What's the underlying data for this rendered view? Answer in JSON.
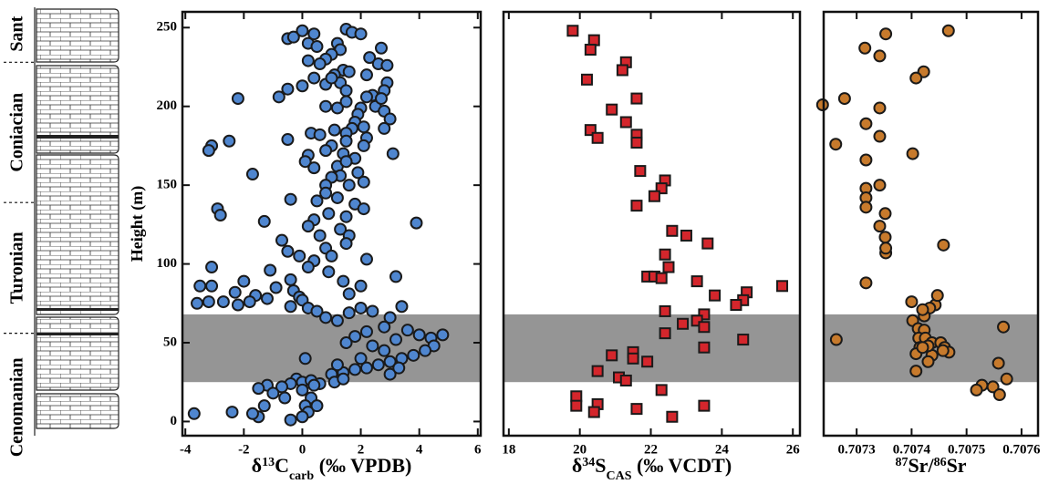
{
  "column": {
    "stages": [
      "Cenomanian",
      "Turonian",
      "Coniacian",
      "Sant"
    ],
    "boundaries": [
      56,
      139,
      228
    ]
  },
  "chart_data": [
    {
      "type": "scatter",
      "x_label": [
        "δ",
        "13",
        "C",
        "carb",
        " (‰ VPDB)"
      ],
      "y_label": "Height (m)",
      "color": "#4f86cf",
      "marker": "circle",
      "xlim": [
        -4.1,
        6.1
      ],
      "ylim": [
        -9,
        260
      ],
      "xticks": [
        -4,
        -2,
        0,
        2,
        4,
        6
      ],
      "yticks": [
        0,
        50,
        100,
        150,
        200,
        250
      ],
      "band": [
        25,
        68
      ],
      "x": [
        -0.5,
        -0.3,
        0,
        0.4,
        0.2,
        0.5,
        1.2,
        1.3,
        1.5,
        1.7,
        2,
        1,
        0.8,
        0.2,
        0.6,
        2.7,
        2.3,
        2.6,
        2.9,
        1.4,
        1.1,
        1.6,
        1.3,
        0.8,
        0.4,
        0,
        -0.5,
        -0.8,
        -2.2,
        1.0,
        1.5,
        2.2,
        2.9,
        2.8,
        2.4,
        2.2,
        2.5,
        2.0,
        1.9,
        1.8,
        1.7,
        2.7,
        2.8,
        3.0,
        2.8,
        2.2,
        2.1,
        3.1,
        2.1,
        1.2,
        1.5,
        0.8,
        -2.5,
        -3.1,
        -3.2,
        -0.5,
        0.3,
        0.6,
        1.1,
        1.5,
        1.5,
        1.0,
        0.8,
        1.4,
        1.8,
        0.2,
        0.1,
        0.4,
        1.2,
        1.5,
        1.3,
        1.0,
        0.8,
        1.6,
        1.9,
        2.1,
        -1.7,
        -0.4,
        0.5,
        0.8,
        1.2,
        1.8,
        2.1,
        1.5,
        0.9,
        -2.9,
        -2.8,
        -1.3,
        0.4,
        0.2,
        1.3,
        1.6,
        0.6,
        0.8,
        -0.7,
        -0.5,
        -0.1,
        0.4,
        3.9,
        1.5,
        1.0,
        2.2,
        -3.1,
        -1.1,
        -2.0,
        -3.5,
        -3.1,
        -2.3,
        -1.6,
        -1.2,
        -0.9,
        -0.4,
        -0.3,
        -0.1,
        0,
        0.2,
        0.9,
        1.4,
        3.2,
        2.0,
        1.6,
        -3.6,
        -3.2,
        -2.7,
        -2.2,
        -1.8,
        -0.4,
        0.2,
        0.5,
        0.8,
        1.2,
        1.6,
        2.0,
        2.4,
        3.0,
        3.4,
        2.8,
        2.2,
        1.8,
        1.5,
        2.4,
        2.8,
        3.2,
        3.6,
        4.0,
        4.4,
        4.8,
        4.5,
        4.2,
        3.8,
        3.4,
        3.0,
        2.6,
        2.2,
        1.8,
        1.4,
        1.0,
        1.2,
        2.0,
        3.0,
        3.3,
        0.1,
        -0.2,
        -0.4,
        0,
        0.3,
        0.6,
        -0.7,
        -1.2,
        -1.5,
        -1.0,
        -0.6,
        0,
        0.3,
        0.1,
        0.2,
        0,
        -0.4,
        -1.5,
        -1.7,
        -2.4,
        -3.7,
        -1.3,
        0.5,
        0.4,
        1.1,
        1.4
      ],
      "values": [
        243,
        244,
        248,
        246,
        240,
        238,
        240,
        236,
        249,
        247,
        246,
        233,
        230,
        229,
        227,
        237,
        231,
        227,
        226,
        223,
        220,
        222,
        215,
        214,
        218,
        213,
        211,
        206,
        205,
        218,
        210,
        220,
        215,
        210,
        207,
        206,
        200,
        199,
        195,
        190,
        186,
        205,
        197,
        192,
        186,
        180,
        175,
        170,
        187,
        199,
        203,
        200,
        178,
        175,
        172,
        179,
        183,
        182,
        185,
        183,
        178,
        175,
        172,
        170,
        167,
        169,
        165,
        161,
        162,
        165,
        156,
        155,
        150,
        150,
        158,
        152,
        157,
        141,
        140,
        145,
        142,
        138,
        135,
        130,
        132,
        135,
        131,
        127,
        128,
        124,
        122,
        118,
        118,
        110,
        115,
        108,
        105,
        102,
        126,
        113,
        105,
        103,
        98,
        96,
        89,
        86,
        86,
        82,
        80,
        78,
        85,
        90,
        83,
        79,
        77,
        98,
        95,
        89,
        92,
        86,
        81,
        75,
        76,
        76,
        74,
        76,
        73,
        72,
        70,
        66,
        64,
        69,
        72,
        70,
        66,
        73,
        60,
        57,
        54,
        50,
        48,
        45,
        52,
        58,
        55,
        53,
        55,
        48,
        45,
        42,
        40,
        38,
        36,
        34,
        33,
        31,
        30,
        36,
        40,
        30,
        34,
        40,
        27,
        24,
        25,
        26,
        24,
        22,
        23,
        21,
        18,
        15,
        20,
        15,
        10,
        6,
        3,
        1,
        3,
        5,
        6,
        5,
        10,
        10,
        23,
        25,
        27
      ]
    },
    {
      "type": "scatter",
      "x_label": [
        "δ",
        "34",
        "S",
        "CAS",
        " (‰ VCDT)"
      ],
      "color": "#d4262c",
      "marker": "square",
      "xlim": [
        17.85,
        26.2
      ],
      "ylim": [
        -9,
        260
      ],
      "xticks": [
        18,
        20,
        22,
        24,
        26
      ],
      "band": [
        25,
        68
      ],
      "x": [
        19.8,
        20.4,
        20.3,
        21.3,
        21.2,
        20.2,
        20.9,
        21.6,
        21.3,
        20.3,
        20.5,
        21.6,
        21.6,
        21.7,
        22.4,
        22.3,
        22.1,
        21.6,
        22.6,
        23.0,
        23.6,
        22.4,
        22.5,
        21.9,
        22.1,
        22.3,
        23.3,
        25.7,
        24.7,
        23.8,
        24.6,
        24.4,
        22.4,
        23.5,
        23.3,
        22.9,
        23.5,
        22.4,
        24.6,
        23.5,
        21.5,
        21.5,
        20.9,
        21.9,
        20.5,
        21.1,
        21.3,
        22.3,
        19.9,
        19.9,
        20.5,
        23.5,
        21.6,
        20.4,
        22.6
      ],
      "values": [
        248,
        242,
        236,
        228,
        223,
        217,
        198,
        205,
        190,
        185,
        180,
        182,
        177,
        159,
        153,
        148,
        143,
        137,
        121,
        118,
        113,
        106,
        98,
        92,
        92,
        91,
        89,
        86,
        82,
        80,
        77,
        74,
        70,
        68,
        64,
        62,
        60,
        56,
        52,
        47,
        44,
        40,
        42,
        38,
        32,
        28,
        26,
        20,
        16,
        10,
        11,
        10,
        8,
        6,
        3
      ]
    },
    {
      "type": "scatter",
      "x_label": [
        "87",
        "Sr/",
        "86",
        "Sr"
      ],
      "color": "#c77a2c",
      "marker": "circle",
      "xlim": [
        0.70724,
        0.70763
      ],
      "ylim": [
        -9,
        260
      ],
      "xticks": [
        0.7073,
        0.7074,
        0.7075,
        0.7076
      ],
      "band": [
        25,
        68
      ],
      "x": [
        0.707238,
        0.707278,
        0.707262,
        0.707315,
        0.707353,
        0.707342,
        0.707422,
        0.707408,
        0.707467,
        0.707317,
        0.707342,
        0.707342,
        0.707317,
        0.707402,
        0.707317,
        0.707317,
        0.707317,
        0.707342,
        0.707352,
        0.707342,
        0.707352,
        0.707353,
        0.707353,
        0.707458,
        0.707317,
        0.7074,
        0.707443,
        0.707447,
        0.707433,
        0.707423,
        0.70742,
        0.707402,
        0.707412,
        0.707423,
        0.707567,
        0.707413,
        0.707425,
        0.707437,
        0.707453,
        0.70746,
        0.707468,
        0.707415,
        0.707408,
        0.707437,
        0.70743,
        0.70742,
        0.70743,
        0.707408,
        0.707457,
        0.707263,
        0.707558,
        0.707573,
        0.707528,
        0.707548,
        0.707518,
        0.70756
      ],
      "values": [
        201,
        205,
        176,
        237,
        246,
        232,
        222,
        218,
        248,
        189,
        199,
        181,
        166,
        170,
        148,
        142,
        136,
        150,
        132,
        124,
        117,
        107,
        110,
        112,
        88,
        76,
        74,
        80,
        72,
        67,
        71,
        64,
        59,
        58,
        60,
        53,
        53,
        50,
        50,
        47,
        44,
        47,
        43,
        42,
        48,
        47,
        38,
        32,
        45,
        52,
        37,
        27,
        23,
        22,
        20,
        17
      ]
    }
  ]
}
